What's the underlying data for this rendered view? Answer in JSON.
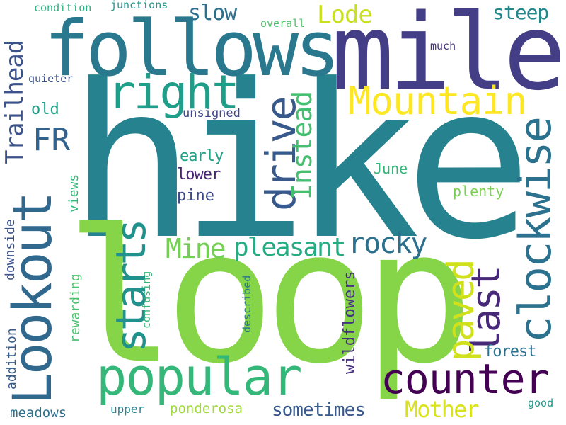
{
  "words": [
    {
      "text": "hike",
      "color": "#26828e"
    },
    {
      "text": "loop",
      "color": "#86d549"
    },
    {
      "text": "mile",
      "color": "#433e85"
    },
    {
      "text": "follows",
      "color": "#2a788e"
    },
    {
      "text": "Lookout",
      "color": "#31688e"
    },
    {
      "text": "popular",
      "color": "#35b779"
    },
    {
      "text": "counter",
      "color": "#440154"
    },
    {
      "text": "clockwise",
      "color": "#2c728e"
    },
    {
      "text": "Mountain",
      "color": "#fde725"
    },
    {
      "text": "right",
      "color": "#1f9e89"
    },
    {
      "text": "drive",
      "color": "#38598c"
    },
    {
      "text": "starts",
      "color": "#21918c"
    },
    {
      "text": "last",
      "color": "#482878"
    },
    {
      "text": "paved",
      "color": "#d0e11c"
    },
    {
      "text": "Trailhead",
      "color": "#3b528b"
    },
    {
      "text": "FR",
      "color": "#33638d"
    },
    {
      "text": "Instead",
      "color": "#44bf70"
    },
    {
      "text": "Mine",
      "color": "#73d055"
    },
    {
      "text": "pleasant",
      "color": "#25ac82"
    },
    {
      "text": "rocky",
      "color": "#2d708e"
    },
    {
      "text": "Mother",
      "color": "#dae319"
    },
    {
      "text": "Lode",
      "color": "#c8e020"
    },
    {
      "text": "slow",
      "color": "#2d708e"
    },
    {
      "text": "steep",
      "color": "#23888e"
    },
    {
      "text": "sometimes",
      "color": "#38598c"
    },
    {
      "text": "wildflowers",
      "color": "#46327e"
    },
    {
      "text": "forest",
      "color": "#2c728e"
    },
    {
      "text": "old",
      "color": "#1fa187"
    },
    {
      "text": "early",
      "color": "#1fa187"
    },
    {
      "text": "lower",
      "color": "#482475"
    },
    {
      "text": "pine",
      "color": "#3e4a89"
    },
    {
      "text": "June",
      "color": "#34b679"
    },
    {
      "text": "plenty",
      "color": "#7ad151"
    },
    {
      "text": "unsigned",
      "color": "#404688"
    },
    {
      "text": "views",
      "color": "#35b779"
    },
    {
      "text": "downside",
      "color": "#3b528b"
    },
    {
      "text": "addition",
      "color": "#365c8d"
    },
    {
      "text": "rewarding",
      "color": "#4ac16d"
    },
    {
      "text": "confusing",
      "color": "#37b878"
    },
    {
      "text": "described",
      "color": "#2a788e"
    },
    {
      "text": "ponderosa",
      "color": "#a0da39"
    },
    {
      "text": "meadows",
      "color": "#2d708e"
    },
    {
      "text": "upper",
      "color": "#25858e"
    },
    {
      "text": "good",
      "color": "#1f988b"
    },
    {
      "text": "much",
      "color": "#46327e"
    },
    {
      "text": "quieter",
      "color": "#3b528b"
    },
    {
      "text": "overall",
      "color": "#4ec36b"
    },
    {
      "text": "junctions",
      "color": "#1f968b"
    },
    {
      "text": "condition",
      "color": "#2ab07f"
    }
  ]
}
